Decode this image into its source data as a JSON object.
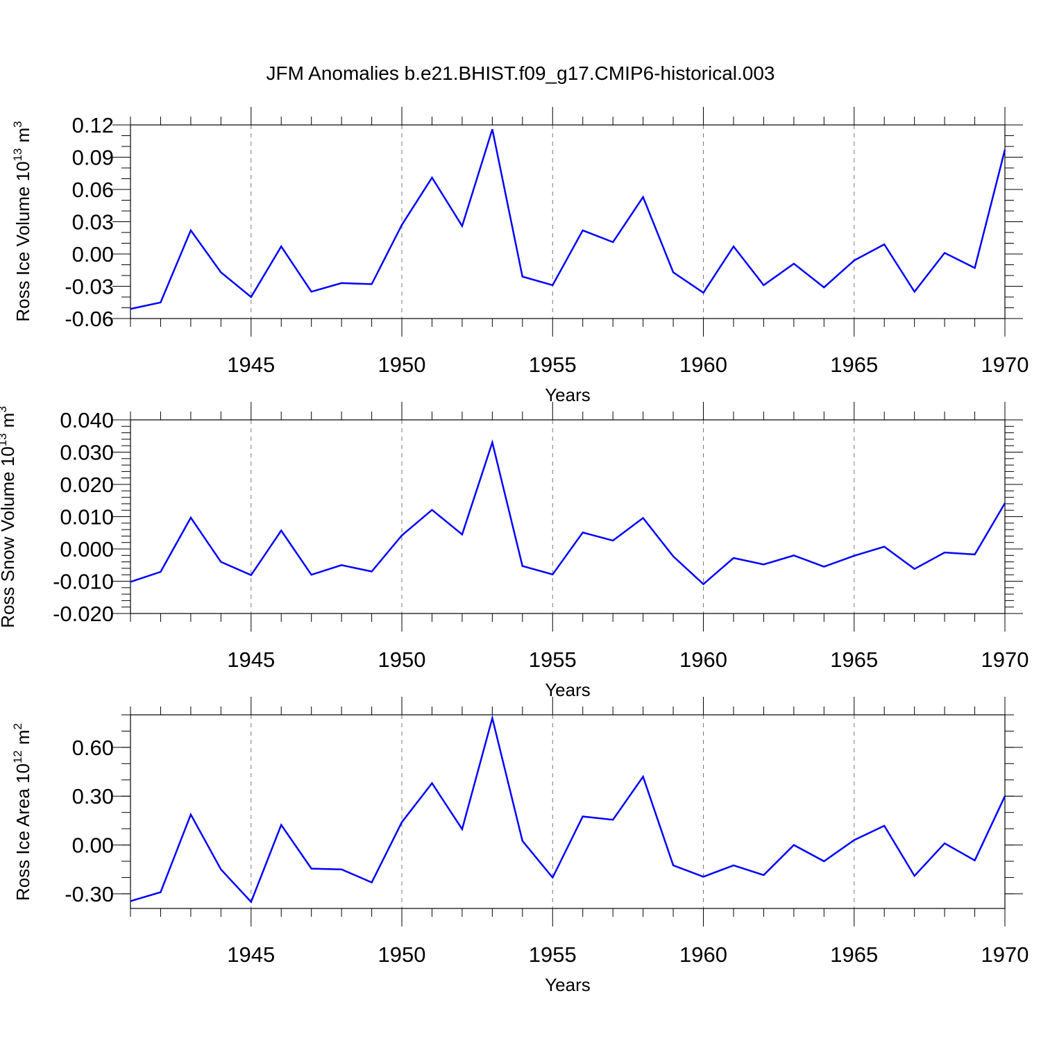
{
  "figure": {
    "title": "JFM Anomalies b.e21.BHIST.f09_g17.CMIP6-historical.003"
  },
  "chart_data": [
    {
      "type": "line",
      "title": "",
      "xlabel": "Years",
      "ylabel": "Ross Ice Volume 10",
      "ylabel_exponent": "13",
      "ylabel_unit": "m",
      "ylabel_unit_exponent": "3",
      "xlim": [
        1941,
        1970
      ],
      "ylim": [
        -0.06,
        0.12
      ],
      "x_major_ticks": [
        1945,
        1950,
        1955,
        1960,
        1965,
        1970
      ],
      "x_tick_labels": [
        "1945",
        "1950",
        "1955",
        "1960",
        "1965",
        "1970"
      ],
      "y_major_ticks": [
        -0.06,
        -0.03,
        0.0,
        0.03,
        0.06,
        0.09,
        0.12
      ],
      "y_tick_labels": [
        "-0.06",
        "-0.03",
        "0.00",
        "0.03",
        "0.06",
        "0.09",
        "0.12"
      ],
      "y_minor_step": 0.01,
      "grid": "vertical dashed at major x ticks",
      "color": "#0000ff",
      "x": [
        1941,
        1942,
        1943,
        1944,
        1945,
        1946,
        1947,
        1948,
        1949,
        1950,
        1951,
        1952,
        1953,
        1954,
        1955,
        1956,
        1957,
        1958,
        1959,
        1960,
        1961,
        1962,
        1963,
        1964,
        1965,
        1966,
        1967,
        1968,
        1969,
        1970
      ],
      "values": [
        -0.051,
        -0.045,
        0.022,
        -0.017,
        -0.04,
        0.007,
        -0.035,
        -0.027,
        -0.028,
        0.027,
        0.071,
        0.026,
        0.116,
        -0.021,
        -0.029,
        0.022,
        0.011,
        0.053,
        -0.017,
        -0.036,
        0.007,
        -0.029,
        -0.009,
        -0.031,
        -0.006,
        0.009,
        -0.035,
        0.001,
        -0.013,
        0.097
      ]
    },
    {
      "type": "line",
      "title": "",
      "xlabel": "Years",
      "ylabel": "Ross Snow Volume 10",
      "ylabel_exponent": "13",
      "ylabel_unit": "m",
      "ylabel_unit_exponent": "3",
      "xlim": [
        1941,
        1970
      ],
      "ylim": [
        -0.02,
        0.04
      ],
      "x_major_ticks": [
        1945,
        1950,
        1955,
        1960,
        1965,
        1970
      ],
      "x_tick_labels": [
        "1945",
        "1950",
        "1955",
        "1960",
        "1965",
        "1970"
      ],
      "y_major_ticks": [
        -0.02,
        -0.01,
        0.0,
        0.01,
        0.02,
        0.03,
        0.04
      ],
      "y_tick_labels": [
        "-0.020",
        "-0.010",
        "0.000",
        "0.010",
        "0.020",
        "0.030",
        "0.040"
      ],
      "y_minor_step": 0.002,
      "grid": "vertical dashed at major x ticks",
      "color": "#0000ff",
      "x": [
        1941,
        1942,
        1943,
        1944,
        1945,
        1946,
        1947,
        1948,
        1949,
        1950,
        1951,
        1952,
        1953,
        1954,
        1955,
        1956,
        1957,
        1958,
        1959,
        1960,
        1961,
        1962,
        1963,
        1964,
        1965,
        1966,
        1967,
        1968,
        1969,
        1970
      ],
      "values": [
        -0.0102,
        -0.0071,
        0.0097,
        -0.004,
        -0.0081,
        0.0057,
        -0.008,
        -0.005,
        -0.007,
        0.0042,
        0.0121,
        0.0045,
        0.033,
        -0.0053,
        -0.0079,
        0.0051,
        0.0026,
        0.0096,
        -0.0023,
        -0.0109,
        -0.0028,
        -0.0048,
        -0.002,
        -0.0055,
        -0.0021,
        0.0007,
        -0.0062,
        -0.0011,
        -0.0017,
        0.0142
      ]
    },
    {
      "type": "line",
      "title": "",
      "xlabel": "Years",
      "ylabel": "Ross Ice Area 10",
      "ylabel_exponent": "12",
      "ylabel_unit": "m",
      "ylabel_unit_exponent": "2",
      "xlim": [
        1941,
        1970
      ],
      "ylim": [
        -0.39,
        0.8
      ],
      "x_major_ticks": [
        1945,
        1950,
        1955,
        1960,
        1965,
        1970
      ],
      "x_tick_labels": [
        "1945",
        "1950",
        "1955",
        "1960",
        "1965",
        "1970"
      ],
      "y_major_ticks": [
        -0.3,
        0.0,
        0.3,
        0.6
      ],
      "y_tick_labels": [
        "-0.30",
        "0.00",
        "0.30",
        "0.60"
      ],
      "y_minor_step": 0.1,
      "grid": "vertical dashed at major x ticks",
      "color": "#0000ff",
      "x": [
        1941,
        1942,
        1943,
        1944,
        1945,
        1946,
        1947,
        1948,
        1949,
        1950,
        1951,
        1952,
        1953,
        1954,
        1955,
        1956,
        1957,
        1958,
        1959,
        1960,
        1961,
        1962,
        1963,
        1964,
        1965,
        1966,
        1967,
        1968,
        1969,
        1970
      ],
      "values": [
        -0.345,
        -0.29,
        0.187,
        -0.15,
        -0.35,
        0.123,
        -0.145,
        -0.15,
        -0.23,
        0.14,
        0.38,
        0.097,
        0.78,
        0.025,
        -0.2,
        0.175,
        0.155,
        0.42,
        -0.125,
        -0.195,
        -0.125,
        -0.185,
        0.0,
        -0.1,
        0.03,
        0.118,
        -0.19,
        0.01,
        -0.095,
        0.3
      ]
    }
  ]
}
